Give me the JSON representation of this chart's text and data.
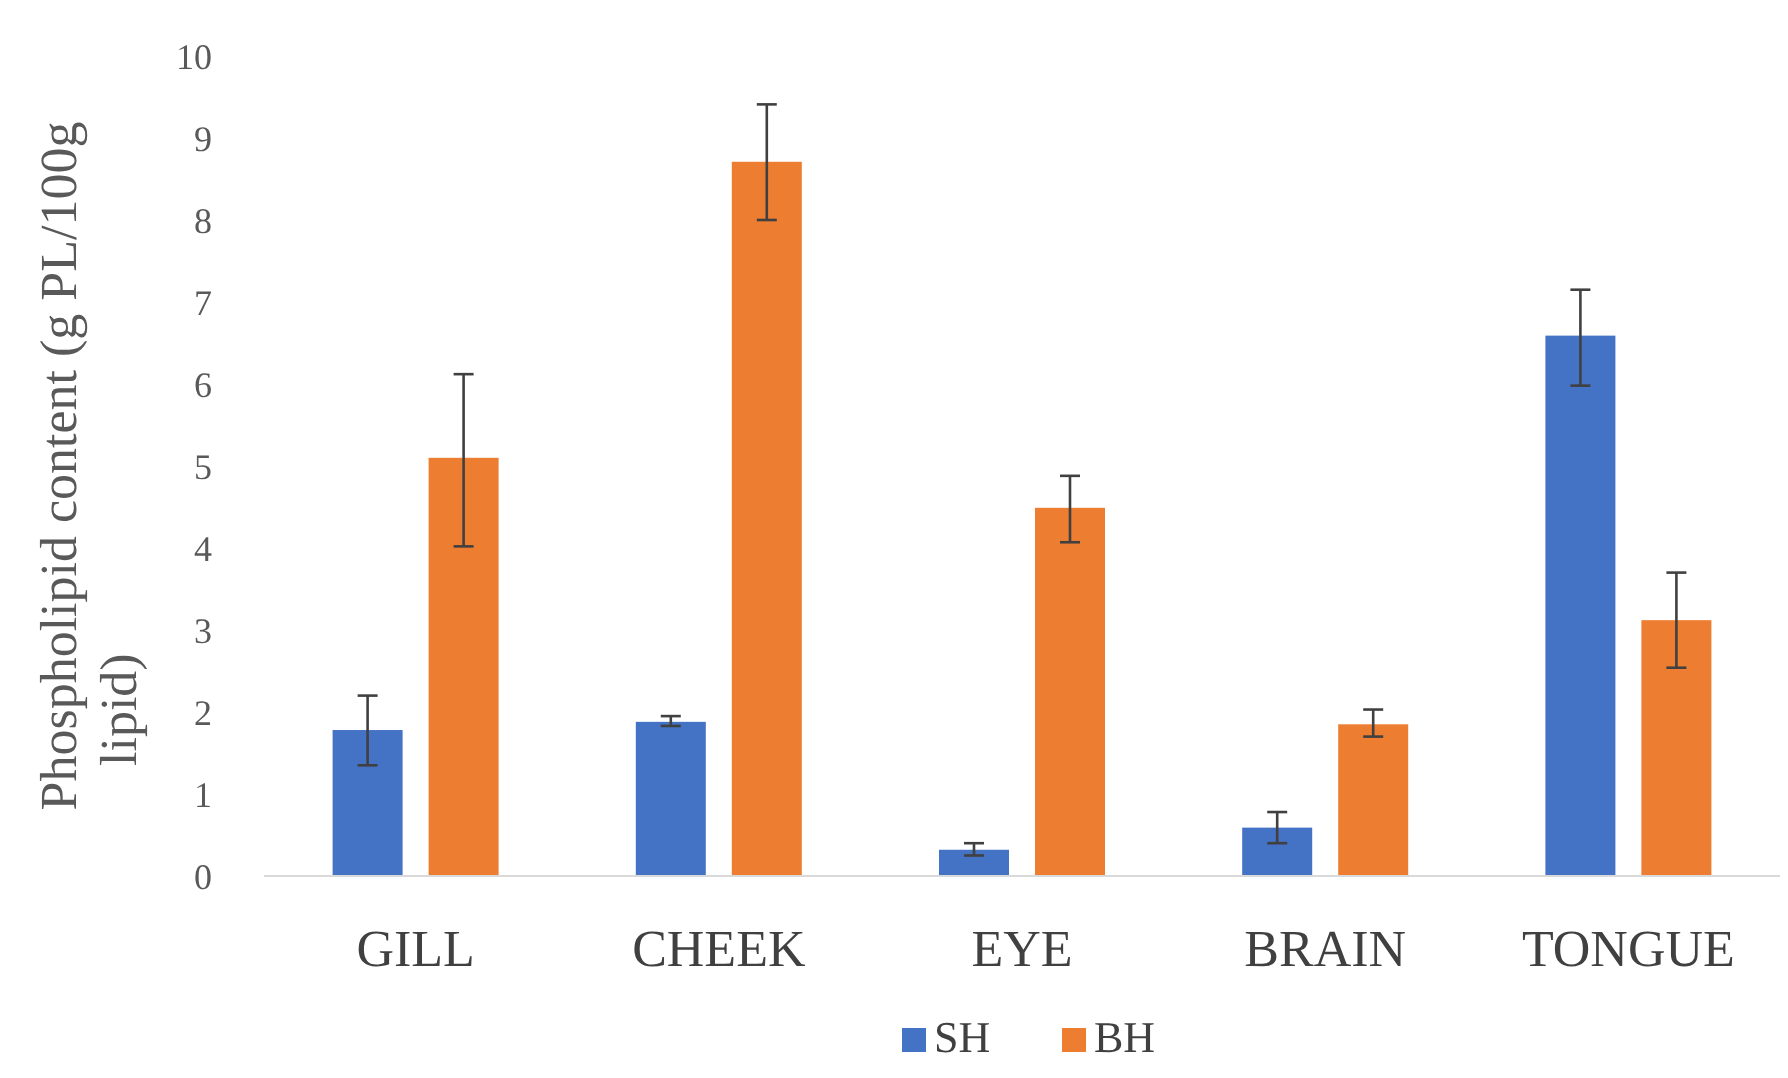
{
  "chart_data": {
    "type": "bar",
    "ylabel": "Phospholipid content (g PL/100g lipid)",
    "categories": [
      "GILL",
      "CHEEK",
      "EYE",
      "BRAIN",
      "TONGUE"
    ],
    "series": [
      {
        "name": "SH",
        "color": "#4472c4",
        "values": [
          1.78,
          1.88,
          0.32,
          0.59,
          6.59
        ],
        "errors": [
          [
            1.35,
            2.2
          ],
          [
            1.83,
            1.95
          ],
          [
            0.25,
            0.4
          ],
          [
            0.4,
            0.78
          ],
          [
            5.98,
            7.15
          ]
        ]
      },
      {
        "name": "BH",
        "color": "#ed7d31",
        "values": [
          5.1,
          8.71,
          4.49,
          1.85,
          3.12
        ],
        "errors": [
          [
            4.02,
            6.12
          ],
          [
            8.0,
            9.41
          ],
          [
            4.07,
            4.88
          ],
          [
            1.7,
            2.03
          ],
          [
            2.54,
            3.7
          ]
        ]
      }
    ],
    "ylim": [
      0,
      10
    ],
    "yticks": [
      0,
      1,
      2,
      3,
      4,
      5,
      6,
      7,
      8,
      9,
      10
    ],
    "grid": false,
    "legend": "bottom"
  }
}
